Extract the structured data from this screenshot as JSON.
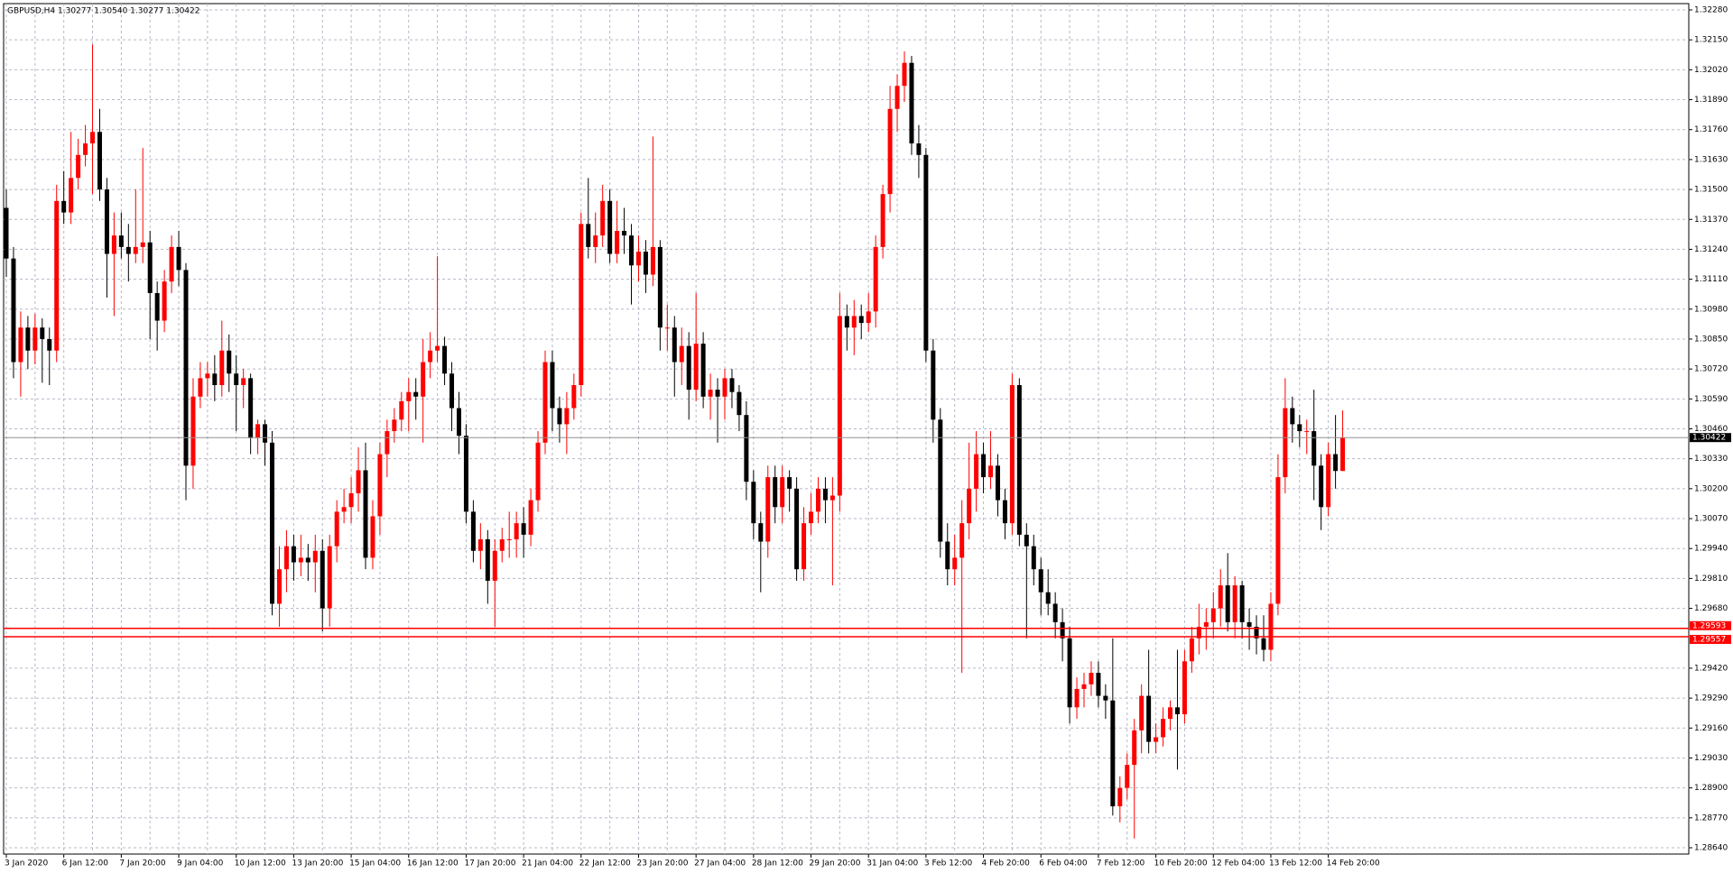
{
  "chart_data": {
    "type": "candlestick",
    "title": "GBPUSD,H4  1.30277 1.30540 1.30277 1.30422",
    "categories": [
      "3 Jan 2020",
      null,
      null,
      null,
      null,
      null,
      null,
      null,
      "6 Jan 12:00",
      null,
      null,
      null,
      null,
      null,
      null,
      null,
      "7 Jan 20:00",
      null,
      null,
      null,
      null,
      null,
      null,
      null,
      "9 Jan 04:00",
      null,
      null,
      null,
      null,
      null,
      null,
      null,
      "10 Jan 12:00",
      null,
      null,
      null,
      null,
      null,
      null,
      null,
      "13 Jan 20:00",
      null,
      null,
      null,
      null,
      null,
      null,
      null,
      "15 Jan 04:00",
      null,
      null,
      null,
      null,
      null,
      null,
      null,
      "16 Jan 12:00",
      null,
      null,
      null,
      null,
      null,
      null,
      null,
      "17 Jan 20:00",
      null,
      null,
      null,
      null,
      null,
      null,
      null,
      "21 Jan 04:00",
      null,
      null,
      null,
      null,
      null,
      null,
      null,
      "22 Jan 12:00",
      null,
      null,
      null,
      null,
      null,
      null,
      null,
      "23 Jan 20:00",
      null,
      null,
      null,
      null,
      null,
      null,
      null,
      "27 Jan 04:00",
      null,
      null,
      null,
      null,
      null,
      null,
      null,
      "28 Jan 12:00",
      null,
      null,
      null,
      null,
      null,
      null,
      null,
      "29 Jan 20:00",
      null,
      null,
      null,
      null,
      null,
      null,
      null,
      "31 Jan 04:00",
      null,
      null,
      null,
      null,
      null,
      null,
      null,
      "3 Feb 12:00",
      null,
      null,
      null,
      null,
      null,
      null,
      null,
      "4 Feb 20:00",
      null,
      null,
      null,
      null,
      null,
      null,
      null,
      "6 Feb 04:00",
      null,
      null,
      null,
      null,
      null,
      null,
      null,
      "7 Feb 12:00",
      null,
      null,
      null,
      null,
      null,
      null,
      null,
      "10 Feb 20:00",
      null,
      null,
      null,
      null,
      null,
      null,
      null,
      "12 Feb 04:00",
      null,
      null,
      null,
      null,
      null,
      null,
      null,
      "13 Feb 12:00",
      null,
      null,
      null,
      null,
      null,
      null,
      null,
      "14 Feb 20:00",
      null,
      null
    ],
    "ohlc": [
      [
        1.3142,
        1.315,
        1.3112,
        1.312
      ],
      [
        1.312,
        1.3125,
        1.3068,
        1.3075
      ],
      [
        1.3075,
        1.3097,
        1.306,
        1.309
      ],
      [
        1.309,
        1.3095,
        1.3072,
        1.308
      ],
      [
        1.308,
        1.3096,
        1.3074,
        1.309
      ],
      [
        1.309,
        1.3094,
        1.3066,
        1.3085
      ],
      [
        1.3085,
        1.309,
        1.3065,
        1.308
      ],
      [
        1.308,
        1.3152,
        1.3075,
        1.3145
      ],
      [
        1.3145,
        1.3158,
        1.3135,
        1.314
      ],
      [
        1.314,
        1.3175,
        1.3135,
        1.3155
      ],
      [
        1.3155,
        1.3172,
        1.315,
        1.3165
      ],
      [
        1.3165,
        1.3178,
        1.316,
        1.317
      ],
      [
        1.317,
        1.3213,
        1.3148,
        1.3175
      ],
      [
        1.3175,
        1.3185,
        1.3145,
        1.315
      ],
      [
        1.315,
        1.3155,
        1.3103,
        1.3122
      ],
      [
        1.3122,
        1.314,
        1.3095,
        1.313
      ],
      [
        1.313,
        1.314,
        1.312,
        1.3125
      ],
      [
        1.3125,
        1.3135,
        1.311,
        1.3122
      ],
      [
        1.3122,
        1.315,
        1.3118,
        1.3125
      ],
      [
        1.3125,
        1.3168,
        1.3118,
        1.3127
      ],
      [
        1.3127,
        1.3132,
        1.3085,
        1.3105
      ],
      [
        1.3105,
        1.311,
        1.308,
        1.3093
      ],
      [
        1.3093,
        1.3115,
        1.3088,
        1.311
      ],
      [
        1.311,
        1.313,
        1.3105,
        1.3125
      ],
      [
        1.3125,
        1.3132,
        1.3108,
        1.3115
      ],
      [
        1.3115,
        1.3118,
        1.3015,
        1.303
      ],
      [
        1.303,
        1.3068,
        1.302,
        1.306
      ],
      [
        1.306,
        1.3075,
        1.3055,
        1.3068
      ],
      [
        1.3068,
        1.3075,
        1.306,
        1.307
      ],
      [
        1.307,
        1.3078,
        1.3058,
        1.3065
      ],
      [
        1.3065,
        1.3093,
        1.306,
        1.308
      ],
      [
        1.308,
        1.3087,
        1.3062,
        1.307
      ],
      [
        1.307,
        1.3078,
        1.3045,
        1.3065
      ],
      [
        1.3065,
        1.3072,
        1.3055,
        1.3068
      ],
      [
        1.3068,
        1.307,
        1.3035,
        1.3042
      ],
      [
        1.3042,
        1.305,
        1.3035,
        1.3048
      ],
      [
        1.3048,
        1.305,
        1.303,
        1.304
      ],
      [
        1.304,
        1.3045,
        1.2965,
        1.297
      ],
      [
        1.297,
        1.2995,
        1.296,
        1.2985
      ],
      [
        1.2985,
        1.3002,
        1.2975,
        1.2995
      ],
      [
        1.2995,
        1.3,
        1.298,
        1.2988
      ],
      [
        1.2988,
        1.3,
        1.2982,
        1.299
      ],
      [
        1.299,
        1.2996,
        1.298,
        1.2988
      ],
      [
        1.2988,
        1.3,
        1.2975,
        1.2993
      ],
      [
        1.2993,
        1.2998,
        1.2958,
        1.2968
      ],
      [
        1.2968,
        1.3,
        1.296,
        1.2995
      ],
      [
        1.2995,
        1.3015,
        1.2988,
        1.301
      ],
      [
        1.301,
        1.302,
        1.3005,
        1.3012
      ],
      [
        1.3012,
        1.3025,
        1.3005,
        1.3018
      ],
      [
        1.3018,
        1.3038,
        1.301,
        1.3028
      ],
      [
        1.3028,
        1.304,
        1.2985,
        1.299
      ],
      [
        1.299,
        1.3015,
        1.2985,
        1.3008
      ],
      [
        1.3008,
        1.304,
        1.3,
        1.3035
      ],
      [
        1.3035,
        1.305,
        1.3025,
        1.3045
      ],
      [
        1.3045,
        1.3055,
        1.304,
        1.305
      ],
      [
        1.305,
        1.3062,
        1.3045,
        1.3058
      ],
      [
        1.3058,
        1.3068,
        1.3045,
        1.3062
      ],
      [
        1.3062,
        1.3068,
        1.305,
        1.306
      ],
      [
        1.306,
        1.3085,
        1.304,
        1.3075
      ],
      [
        1.3075,
        1.3088,
        1.3068,
        1.308
      ],
      [
        1.308,
        1.3121,
        1.3075,
        1.3082
      ],
      [
        1.3082,
        1.3086,
        1.3065,
        1.307
      ],
      [
        1.307,
        1.3075,
        1.3045,
        1.3055
      ],
      [
        1.3055,
        1.3062,
        1.3035,
        1.3043
      ],
      [
        1.3043,
        1.3048,
        1.3005,
        1.301
      ],
      [
        1.301,
        1.3015,
        1.2988,
        1.2993
      ],
      [
        1.2993,
        1.3005,
        1.2985,
        1.2998
      ],
      [
        1.2998,
        1.3002,
        1.297,
        1.298
      ],
      [
        1.298,
        1.2998,
        1.296,
        1.2993
      ],
      [
        1.2993,
        1.3003,
        1.2988,
        1.2998
      ],
      [
        1.2998,
        1.301,
        1.299,
        1.2998
      ],
      [
        1.2998,
        1.301,
        1.299,
        1.3005
      ],
      [
        1.3005,
        1.3012,
        1.299,
        1.3
      ],
      [
        1.3,
        1.302,
        1.2995,
        1.3015
      ],
      [
        1.3015,
        1.3045,
        1.301,
        1.304
      ],
      [
        1.304,
        1.308,
        1.3035,
        1.3075
      ],
      [
        1.3075,
        1.308,
        1.3045,
        1.3055
      ],
      [
        1.3055,
        1.306,
        1.304,
        1.3048
      ],
      [
        1.3048,
        1.3062,
        1.3035,
        1.3055
      ],
      [
        1.3055,
        1.307,
        1.305,
        1.3065
      ],
      [
        1.3065,
        1.314,
        1.306,
        1.3135
      ],
      [
        1.3135,
        1.3155,
        1.312,
        1.3125
      ],
      [
        1.3125,
        1.314,
        1.3118,
        1.313
      ],
      [
        1.313,
        1.3152,
        1.3125,
        1.3145
      ],
      [
        1.3145,
        1.315,
        1.3118,
        1.3122
      ],
      [
        1.3122,
        1.3145,
        1.3118,
        1.3132
      ],
      [
        1.3132,
        1.3142,
        1.3122,
        1.313
      ],
      [
        1.313,
        1.3135,
        1.31,
        1.3117
      ],
      [
        1.3117,
        1.313,
        1.311,
        1.3123
      ],
      [
        1.3123,
        1.3128,
        1.3105,
        1.3113
      ],
      [
        1.3113,
        1.3173,
        1.3108,
        1.3125
      ],
      [
        1.3125,
        1.3128,
        1.308,
        1.309
      ],
      [
        1.309,
        1.31,
        1.308,
        1.309
      ],
      [
        1.309,
        1.3095,
        1.306,
        1.3075
      ],
      [
        1.3075,
        1.309,
        1.3065,
        1.3082
      ],
      [
        1.3082,
        1.3088,
        1.305,
        1.3063
      ],
      [
        1.3063,
        1.3105,
        1.3058,
        1.3083
      ],
      [
        1.3083,
        1.3088,
        1.3055,
        1.306
      ],
      [
        1.306,
        1.307,
        1.305,
        1.3063
      ],
      [
        1.3063,
        1.3068,
        1.304,
        1.306
      ],
      [
        1.306,
        1.3072,
        1.305,
        1.3068
      ],
      [
        1.3068,
        1.3072,
        1.3055,
        1.3062
      ],
      [
        1.3062,
        1.3065,
        1.3045,
        1.3052
      ],
      [
        1.3052,
        1.3058,
        1.3015,
        1.3023
      ],
      [
        1.3023,
        1.3028,
        1.2998,
        1.3005
      ],
      [
        1.3005,
        1.301,
        1.2975,
        1.2997
      ],
      [
        1.2997,
        1.303,
        1.299,
        1.3025
      ],
      [
        1.3025,
        1.303,
        1.3005,
        1.3012
      ],
      [
        1.3012,
        1.303,
        1.3005,
        1.3025
      ],
      [
        1.3025,
        1.3028,
        1.301,
        1.302
      ],
      [
        1.302,
        1.3025,
        1.298,
        1.2985
      ],
      [
        1.2985,
        1.3012,
        1.298,
        1.3005
      ],
      [
        1.3005,
        1.3018,
        1.3,
        1.301
      ],
      [
        1.301,
        1.3025,
        1.3005,
        1.302
      ],
      [
        1.302,
        1.3025,
        1.3005,
        1.3015
      ],
      [
        1.3015,
        1.3025,
        1.2978,
        1.3017
      ],
      [
        1.3017,
        1.3105,
        1.301,
        1.3095
      ],
      [
        1.3095,
        1.31,
        1.308,
        1.309
      ],
      [
        1.309,
        1.3102,
        1.3078,
        1.3095
      ],
      [
        1.3095,
        1.31,
        1.3085,
        1.3092
      ],
      [
        1.3092,
        1.3105,
        1.3088,
        1.3097
      ],
      [
        1.3097,
        1.313,
        1.309,
        1.3125
      ],
      [
        1.3125,
        1.3152,
        1.312,
        1.3148
      ],
      [
        1.3148,
        1.3195,
        1.314,
        1.3185
      ],
      [
        1.3185,
        1.32,
        1.3175,
        1.3195
      ],
      [
        1.3195,
        1.321,
        1.3188,
        1.3205
      ],
      [
        1.3205,
        1.3208,
        1.3165,
        1.317
      ],
      [
        1.317,
        1.3178,
        1.3155,
        1.3165
      ],
      [
        1.3165,
        1.3168,
        1.3075,
        1.308
      ],
      [
        1.308,
        1.3085,
        1.304,
        1.305
      ],
      [
        1.305,
        1.3055,
        1.299,
        1.2997
      ],
      [
        1.2997,
        1.3005,
        1.2978,
        1.2985
      ],
      [
        1.2985,
        1.3,
        1.2978,
        1.299
      ],
      [
        1.299,
        1.3015,
        1.294,
        1.3005
      ],
      [
        1.3005,
        1.304,
        1.2998,
        1.302
      ],
      [
        1.302,
        1.3045,
        1.301,
        1.3035
      ],
      [
        1.3035,
        1.304,
        1.3018,
        1.3025
      ],
      [
        1.3025,
        1.3045,
        1.302,
        1.303
      ],
      [
        1.303,
        1.3035,
        1.3008,
        1.3015
      ],
      [
        1.3015,
        1.302,
        1.2998,
        1.3005
      ],
      [
        1.3005,
        1.307,
        1.3,
        1.3065
      ],
      [
        1.3065,
        1.3068,
        1.2995,
        1.3
      ],
      [
        1.3,
        1.3005,
        1.2955,
        1.2995
      ],
      [
        1.2995,
        1.3,
        1.2978,
        1.2985
      ],
      [
        1.2985,
        1.299,
        1.2965,
        1.2975
      ],
      [
        1.2975,
        1.2985,
        1.2965,
        1.297
      ],
      [
        1.297,
        1.2975,
        1.2955,
        1.2962
      ],
      [
        1.2962,
        1.2968,
        1.2945,
        1.2955
      ],
      [
        1.2955,
        1.296,
        1.2918,
        1.2925
      ],
      [
        1.2925,
        1.2938,
        1.292,
        1.2933
      ],
      [
        1.2933,
        1.294,
        1.2925,
        1.2935
      ],
      [
        1.2935,
        1.2945,
        1.293,
        1.294
      ],
      [
        1.294,
        1.2945,
        1.2925,
        1.293
      ],
      [
        1.293,
        1.2935,
        1.292,
        1.2928
      ],
      [
        1.2928,
        1.2955,
        1.2878,
        1.2882
      ],
      [
        1.2882,
        1.2895,
        1.2875,
        1.289
      ],
      [
        1.289,
        1.2905,
        1.2885,
        1.29
      ],
      [
        1.29,
        1.292,
        1.2868,
        1.2915
      ],
      [
        1.2915,
        1.2935,
        1.2905,
        1.293
      ],
      [
        1.293,
        1.295,
        1.2905,
        1.291
      ],
      [
        1.291,
        1.2918,
        1.2905,
        1.2912
      ],
      [
        1.2912,
        1.2925,
        1.2908,
        1.292
      ],
      [
        1.292,
        1.2928,
        1.2915,
        1.2925
      ],
      [
        1.2925,
        1.295,
        1.2898,
        1.2922
      ],
      [
        1.2922,
        1.295,
        1.2918,
        1.2945
      ],
      [
        1.2945,
        1.296,
        1.294,
        1.2955
      ],
      [
        1.2955,
        1.297,
        1.2948,
        1.296
      ],
      [
        1.296,
        1.2968,
        1.295,
        1.2962
      ],
      [
        1.2962,
        1.2975,
        1.2955,
        1.2968
      ],
      [
        1.2968,
        1.2985,
        1.296,
        1.2978
      ],
      [
        1.2978,
        1.2992,
        1.2958,
        1.2962
      ],
      [
        1.2962,
        1.2982,
        1.2955,
        1.2978
      ],
      [
        1.2978,
        1.298,
        1.2955,
        1.2962
      ],
      [
        1.2962,
        1.2968,
        1.295,
        1.296
      ],
      [
        1.296,
        1.2965,
        1.2948,
        1.2955
      ],
      [
        1.2955,
        1.2965,
        1.2945,
        1.295
      ],
      [
        1.295,
        1.2975,
        1.2945,
        1.297
      ],
      [
        1.297,
        1.3035,
        1.2965,
        1.3025
      ],
      [
        1.3025,
        1.3068,
        1.3018,
        1.3055
      ],
      [
        1.3055,
        1.306,
        1.304,
        1.3048
      ],
      [
        1.3048,
        1.3052,
        1.3038,
        1.3045
      ],
      [
        1.3045,
        1.305,
        1.3035,
        1.3045
      ],
      [
        1.3045,
        1.3063,
        1.3015,
        1.303
      ],
      [
        1.303,
        1.3035,
        1.3002,
        1.3012
      ],
      [
        1.3012,
        1.304,
        1.3008,
        1.3035
      ],
      [
        1.3035,
        1.3052,
        1.302,
        1.30277
      ],
      [
        1.30277,
        1.3054,
        1.30277,
        1.30422
      ]
    ],
    "bull_color": "#ff0000",
    "bear_color": "#000000",
    "ylim": [
      1.2864,
      1.3228
    ],
    "yticks": [
      {
        "value": 1.3228,
        "label": "1.32280"
      },
      {
        "value": 1.3215,
        "label": "1.32150"
      },
      {
        "value": 1.3202,
        "label": "1.32020"
      },
      {
        "value": 1.3189,
        "label": "1.31890"
      },
      {
        "value": 1.3176,
        "label": "1.31760"
      },
      {
        "value": 1.3163,
        "label": "1.31630"
      },
      {
        "value": 1.315,
        "label": "1.31500"
      },
      {
        "value": 1.3137,
        "label": "1.31370"
      },
      {
        "value": 1.3124,
        "label": "1.31240"
      },
      {
        "value": 1.3111,
        "label": "1.31110"
      },
      {
        "value": 1.3098,
        "label": "1.30980"
      },
      {
        "value": 1.3085,
        "label": "1.30850"
      },
      {
        "value": 1.3072,
        "label": "1.30720"
      },
      {
        "value": 1.3059,
        "label": "1.30590"
      },
      {
        "value": 1.3046,
        "label": "1.30460"
      },
      {
        "value": 1.3033,
        "label": "1.30330"
      },
      {
        "value": 1.302,
        "label": "1.30200"
      },
      {
        "value": 1.3007,
        "label": "1.30070"
      },
      {
        "value": 1.2994,
        "label": "1.29940"
      },
      {
        "value": 1.2981,
        "label": "1.29810"
      },
      {
        "value": 1.2968,
        "label": "1.29680"
      },
      {
        "value": 1.2942,
        "label": "1.29420"
      },
      {
        "value": 1.2929,
        "label": "1.29290"
      },
      {
        "value": 1.2916,
        "label": "1.29160"
      },
      {
        "value": 1.2903,
        "label": "1.29030"
      },
      {
        "value": 1.289,
        "label": "1.28900"
      },
      {
        "value": 1.2877,
        "label": "1.28770"
      },
      {
        "value": 1.2864,
        "label": "1.28640"
      }
    ],
    "grid": true,
    "hlines": [
      {
        "value": 1.29593,
        "color": "#ff0000"
      },
      {
        "value": 1.29557,
        "color": "#ff0000"
      }
    ]
  }
}
